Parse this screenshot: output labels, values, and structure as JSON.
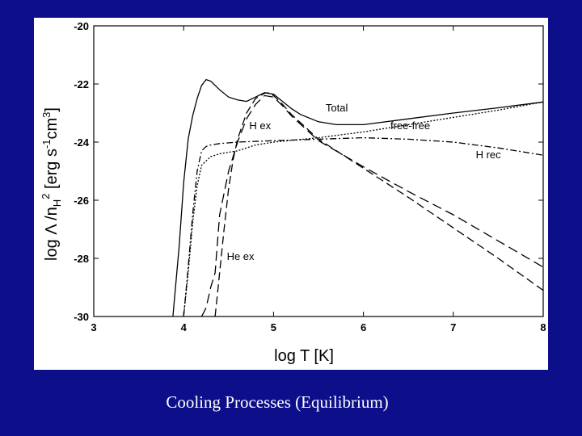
{
  "caption": "Cooling Processes (Equilibrium)",
  "chart_data": {
    "type": "line",
    "xlabel": "log T [K]",
    "ylabel_parts": {
      "pre": "log Λ /n",
      "sub": "H",
      "sup": "2",
      "mid": " [erg s",
      "sup2": "-1",
      "mid2": "cm",
      "sup3": "3",
      "post": "]"
    },
    "xlim": [
      3,
      8
    ],
    "ylim": [
      -30,
      -20
    ],
    "xticks": [
      3,
      4,
      5,
      6,
      7,
      8
    ],
    "yticks": [
      -30,
      -28,
      -26,
      -24,
      -22,
      -20
    ],
    "grid": false,
    "series": [
      {
        "name": "Total",
        "dash": "",
        "x": [
          3.88,
          3.95,
          4.0,
          4.05,
          4.1,
          4.15,
          4.2,
          4.25,
          4.3,
          4.4,
          4.5,
          4.6,
          4.7,
          4.8,
          4.9,
          5.0,
          5.1,
          5.2,
          5.3,
          5.5,
          5.7,
          6.0,
          6.5,
          7.0,
          7.5,
          8.0
        ],
        "y": [
          -30.0,
          -27.6,
          -25.4,
          -23.9,
          -23.1,
          -22.5,
          -22.05,
          -21.85,
          -21.9,
          -22.2,
          -22.45,
          -22.55,
          -22.6,
          -22.45,
          -22.3,
          -22.35,
          -22.6,
          -22.85,
          -23.05,
          -23.3,
          -23.4,
          -23.4,
          -23.2,
          -23.0,
          -22.82,
          -22.62
        ]
      },
      {
        "name": "H ex",
        "dash": "10,5",
        "x": [
          4.35,
          4.4,
          4.45,
          4.5,
          4.55,
          4.6,
          4.7,
          4.8,
          4.9,
          4.95,
          5.0,
          5.1,
          5.2,
          5.5,
          6.0,
          6.5,
          7.0,
          7.5,
          8.0
        ],
        "y": [
          -30.0,
          -28.5,
          -27.0,
          -25.6,
          -24.6,
          -23.9,
          -23.0,
          -22.5,
          -22.32,
          -22.3,
          -22.4,
          -22.7,
          -23.05,
          -23.9,
          -24.9,
          -25.9,
          -26.95,
          -28.0,
          -29.1
        ]
      },
      {
        "name": "He ex",
        "dash": "12,6",
        "x": [
          4.2,
          4.25,
          4.3,
          4.35,
          4.4,
          4.5,
          4.6,
          4.7,
          4.8,
          4.9,
          5.0,
          5.1,
          5.2,
          5.5,
          6.0,
          6.5,
          7.0,
          7.5,
          8.0
        ],
        "y": [
          -30.0,
          -29.7,
          -29.0,
          -28.5,
          -26.5,
          -25.0,
          -24.0,
          -23.2,
          -22.7,
          -22.4,
          -22.45,
          -22.75,
          -23.1,
          -23.95,
          -24.85,
          -25.7,
          -26.5,
          -27.4,
          -28.3
        ]
      },
      {
        "name": "free-free",
        "dash": "2,2",
        "x": [
          4.0,
          4.05,
          4.1,
          4.15,
          4.2,
          4.3,
          4.4,
          4.6,
          4.8,
          5.0,
          5.5,
          6.0,
          6.5,
          7.0,
          7.5,
          8.0
        ],
        "y": [
          -30.0,
          -28.5,
          -26.8,
          -25.5,
          -24.8,
          -24.5,
          -24.4,
          -24.3,
          -24.1,
          -24.0,
          -23.85,
          -23.65,
          -23.4,
          -23.15,
          -22.9,
          -22.62
        ]
      },
      {
        "name": "H rec",
        "dash": "8,3,2,3",
        "x": [
          4.0,
          4.05,
          4.1,
          4.15,
          4.2,
          4.25,
          4.3,
          4.4,
          4.6,
          5.0,
          5.5,
          6.0,
          6.5,
          7.0,
          7.5,
          8.0
        ],
        "y": [
          -30.0,
          -28.3,
          -26.5,
          -25.0,
          -24.3,
          -24.15,
          -24.1,
          -24.05,
          -24.0,
          -23.95,
          -23.9,
          -23.85,
          -23.9,
          -24.0,
          -24.2,
          -24.45
        ]
      }
    ],
    "annotations": [
      {
        "text": "Total",
        "x": 5.58,
        "y": -22.95
      },
      {
        "text": "H ex",
        "x": 4.73,
        "y": -23.55
      },
      {
        "text": "free-free",
        "x": 6.3,
        "y": -23.55
      },
      {
        "text": "H rec",
        "x": 7.25,
        "y": -24.55
      },
      {
        "text": "He ex",
        "x": 4.48,
        "y": -28.05
      }
    ]
  }
}
